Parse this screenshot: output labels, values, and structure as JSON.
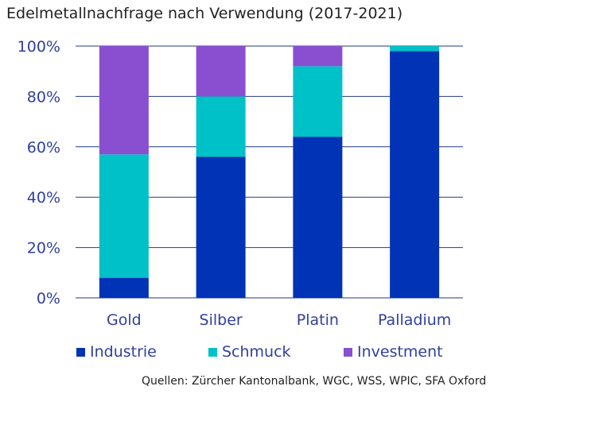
{
  "chart_data": {
    "type": "bar",
    "stacked": true,
    "title": "Edelmetallnachfrage nach Verwendung (2017-2021)",
    "categories": [
      "Gold",
      "Silber",
      "Platin",
      "Palladium"
    ],
    "series": [
      {
        "name": "Industrie",
        "color": "#0033b5",
        "values": [
          8,
          56,
          64,
          98
        ]
      },
      {
        "name": "Schmuck",
        "color": "#00c0c8",
        "values": [
          49,
          24,
          28,
          2
        ]
      },
      {
        "name": "Investment",
        "color": "#8a4fd0",
        "values": [
          43,
          20,
          8,
          0
        ]
      }
    ],
    "ylim": [
      0,
      100
    ],
    "yticks": [
      0,
      20,
      40,
      60,
      80,
      100
    ],
    "ytick_labels": [
      "0%",
      "20%",
      "40%",
      "60%",
      "80%",
      "100%"
    ],
    "grid": true,
    "legend": "bottom"
  },
  "source": "Quellen: Zürcher Kantonalbank, WGC, WSS, WPIC, SFA Oxford"
}
